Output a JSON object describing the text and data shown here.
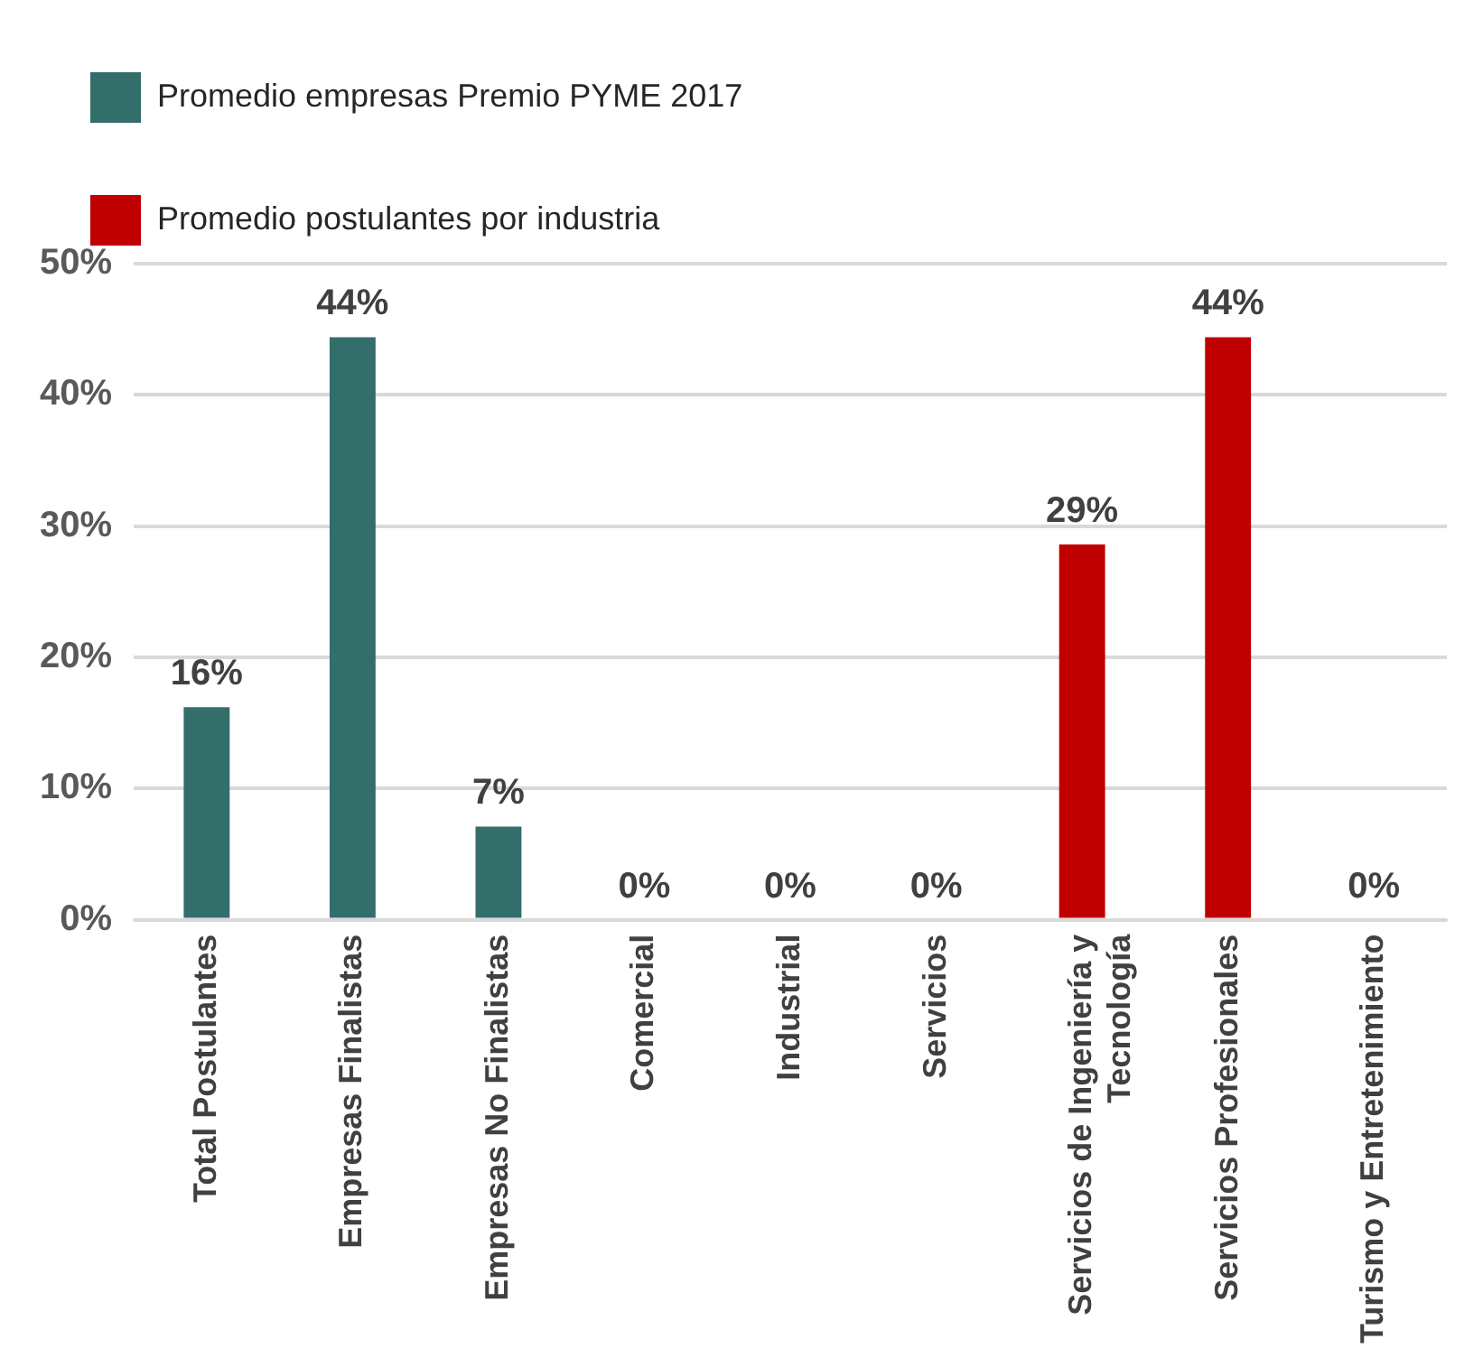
{
  "chart_data": {
    "type": "bar",
    "categories": [
      "Total Postulantes",
      "Empresas Finalistas",
      "Empresas No Finalistas",
      "Comercial",
      "Industrial",
      "Servicios",
      "Servicios de Ingeniería y Tecnología",
      "Servicios Profesionales",
      "Turismo y Entretenimiento"
    ],
    "series": [
      {
        "name": "Promedio empresas Premio PYME 2017",
        "color": "#336e6b",
        "values": [
          16.2,
          44.4,
          7.1,
          null,
          null,
          null,
          null,
          null,
          null
        ],
        "value_labels": [
          "16%",
          "44%",
          "7%",
          null,
          null,
          null,
          null,
          null,
          null
        ]
      },
      {
        "name": "Promedio postulantes por industria",
        "color": "#c00000",
        "values": [
          null,
          null,
          null,
          0,
          0,
          0,
          28.6,
          44.4,
          0
        ],
        "value_labels": [
          null,
          null,
          null,
          "0%",
          "0%",
          "0%",
          "29%",
          "44%",
          "0%"
        ]
      }
    ],
    "ylim": [
      0,
      50
    ],
    "yticks": [
      {
        "value": 0,
        "label": "0%"
      },
      {
        "value": 10,
        "label": "10%"
      },
      {
        "value": 20,
        "label": "20%"
      },
      {
        "value": 30,
        "label": "30%"
      },
      {
        "value": 40,
        "label": "40%"
      },
      {
        "value": 50,
        "label": "50%"
      }
    ],
    "grid": "y",
    "legend": "top"
  }
}
